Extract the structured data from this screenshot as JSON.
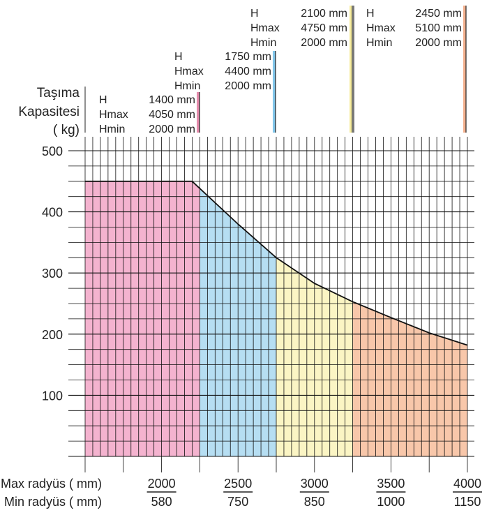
{
  "colors": {
    "grid": "#111111",
    "curve": "#111111",
    "zones": [
      "#f4b3cf",
      "#b6def2",
      "#fbf5c4",
      "#f8c7aa"
    ],
    "markers": [
      "#e0789f",
      "#6cbce6",
      "#f5e98e",
      "#f2a67e"
    ]
  },
  "ylabel": [
    "Taşıma",
    "Kapasitesi",
    "( kg)"
  ],
  "xlabel": {
    "max": "Max radyüs ( mm)",
    "min": "Min radyüs  ( mm)"
  },
  "specs": [
    {
      "rows": [
        {
          "k": "H",
          "v": "1400 mm"
        },
        {
          "k": "Hmax",
          "v": "4050 mm"
        },
        {
          "k": "Hmin",
          "v": "2000 mm"
        }
      ]
    },
    {
      "rows": [
        {
          "k": "H",
          "v": "1750 mm"
        },
        {
          "k": "Hmax",
          "v": "4400 mm"
        },
        {
          "k": "Hmin",
          "v": "2000 mm"
        }
      ]
    },
    {
      "rows": [
        {
          "k": "H",
          "v": "2100 mm"
        },
        {
          "k": "Hmax",
          "v": "4750 mm"
        },
        {
          "k": "Hmin",
          "v": "2000 mm"
        }
      ]
    },
    {
      "rows": [
        {
          "k": "H",
          "v": "2450 mm"
        },
        {
          "k": "Hmax",
          "v": "5100 mm"
        },
        {
          "k": "Hmin",
          "v": "2000 mm"
        }
      ]
    }
  ],
  "chart_data": {
    "type": "area",
    "x_axis": "max radius (mm)",
    "xlim": [
      1500,
      4000
    ],
    "ylim": [
      0,
      500
    ],
    "y_ticks": [
      100,
      200,
      300,
      400,
      500
    ],
    "x_ticks": [
      {
        "max": "2000",
        "min": "580",
        "x": 2000
      },
      {
        "max": "2500",
        "min": "750",
        "x": 2500
      },
      {
        "max": "3000",
        "min": "850",
        "x": 3000
      },
      {
        "max": "3500",
        "min": "1000",
        "x": 3500
      },
      {
        "max": "4000",
        "min": "1150",
        "x": 4000
      }
    ],
    "zones": [
      {
        "from": 1500,
        "to": 2250
      },
      {
        "from": 2250,
        "to": 2750
      },
      {
        "from": 2750,
        "to": 3250
      },
      {
        "from": 3250,
        "to": 4000
      }
    ],
    "capacity_curve": [
      {
        "x": 1500,
        "y": 450
      },
      {
        "x": 2200,
        "y": 450
      },
      {
        "x": 2500,
        "y": 380
      },
      {
        "x": 2750,
        "y": 325
      },
      {
        "x": 3000,
        "y": 283
      },
      {
        "x": 3250,
        "y": 253
      },
      {
        "x": 3500,
        "y": 227
      },
      {
        "x": 3750,
        "y": 202
      },
      {
        "x": 4000,
        "y": 182
      }
    ],
    "grid": true
  }
}
